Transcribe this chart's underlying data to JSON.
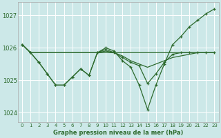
{
  "bg_color": "#cce8e8",
  "grid_color": "#b0d8d8",
  "line_color": "#2d6a2d",
  "title": "Graphe pression niveau de la mer (hPa)",
  "xlim": [
    -0.5,
    23.5
  ],
  "ylim": [
    1023.7,
    1027.4
  ],
  "yticks": [
    1024,
    1025,
    1026,
    1027
  ],
  "xticks": [
    0,
    1,
    2,
    3,
    4,
    5,
    6,
    7,
    8,
    9,
    10,
    11,
    12,
    13,
    14,
    15,
    16,
    17,
    18,
    19,
    20,
    21,
    22,
    23
  ],
  "series": [
    {
      "x": [
        0,
        1,
        2,
        3,
        4,
        5,
        6,
        7,
        8,
        9,
        10,
        11,
        12,
        13,
        14,
        15,
        16,
        17,
        18,
        19,
        20,
        21,
        22,
        23
      ],
      "y": [
        1026.1,
        1025.85,
        1025.85,
        1025.85,
        1025.85,
        1025.85,
        1025.85,
        1025.85,
        1025.85,
        1025.85,
        1025.85,
        1025.85,
        1025.85,
        1025.85,
        1025.85,
        1025.85,
        1025.85,
        1025.85,
        1025.85,
        1025.85,
        1025.85,
        1025.85,
        1025.85,
        1025.85
      ],
      "markers": false
    },
    {
      "x": [
        0,
        1,
        9,
        10,
        11,
        12,
        13,
        14,
        15,
        16,
        17,
        18,
        19,
        20,
        21,
        22,
        23
      ],
      "y": [
        1026.1,
        1025.85,
        1025.85,
        1025.9,
        1025.85,
        1025.75,
        1025.6,
        1025.5,
        1025.4,
        1025.5,
        1025.6,
        1025.7,
        1025.75,
        1025.8,
        1025.85,
        1025.85,
        1025.85
      ],
      "markers": false
    },
    {
      "x": [
        0,
        1,
        2,
        3,
        4,
        5,
        6,
        7,
        8,
        9,
        10,
        11,
        12,
        13,
        14,
        15,
        16,
        17,
        18,
        19,
        20,
        21,
        22,
        23
      ],
      "y": [
        1026.1,
        1025.85,
        1025.55,
        1025.2,
        1024.85,
        1024.85,
        1025.1,
        1025.35,
        1025.15,
        1025.85,
        1025.95,
        1025.85,
        1025.7,
        1025.55,
        1025.45,
        1024.9,
        1025.2,
        1025.55,
        1025.8,
        1025.85,
        1025.85,
        1025.85,
        1025.85,
        1025.85
      ],
      "markers": true
    },
    {
      "x": [
        0,
        1,
        2,
        3,
        4,
        5,
        6,
        7,
        8,
        9,
        10,
        11,
        12,
        13,
        14,
        15,
        16,
        17,
        18,
        19,
        20,
        21,
        22,
        23
      ],
      "y": [
        1026.1,
        1025.85,
        1025.55,
        1025.2,
        1024.85,
        1024.85,
        1025.1,
        1025.35,
        1025.15,
        1025.85,
        1026.0,
        1025.9,
        1025.6,
        1025.4,
        1024.85,
        1024.1,
        1024.85,
        1025.5,
        1026.1,
        1026.35,
        1026.65,
        1026.85,
        1027.05,
        1027.2
      ],
      "markers": true
    }
  ]
}
